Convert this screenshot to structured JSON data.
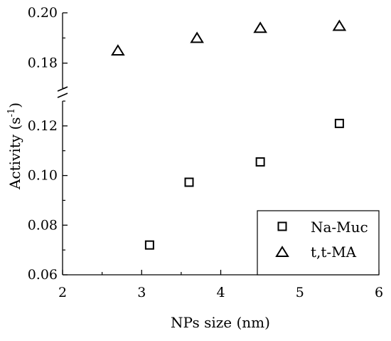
{
  "chart_data": {
    "type": "scatter",
    "title": "",
    "xlabel": "NPs size (nm)",
    "ylabel": "Activity (s",
    "ylabel_sup": "-1",
    "ylabel_suffix": ")",
    "xlim": [
      2,
      6
    ],
    "x_ticks": [
      "2",
      "3",
      "4",
      "5",
      "6"
    ],
    "y_axis_break": true,
    "ylim_lower": [
      0.06,
      0.13
    ],
    "ylim_upper": [
      0.17,
      0.2
    ],
    "y_ticks_lower": [
      "0.06",
      "0.08",
      "0.10",
      "0.12"
    ],
    "y_ticks_upper": [
      "0.18",
      "0.20"
    ],
    "grid": false,
    "legend_position": "bottom-right",
    "series": [
      {
        "name": "Na-Muc",
        "marker": "square-open",
        "color": "#000000",
        "x": [
          3.1,
          3.6,
          4.5,
          5.5
        ],
        "y": [
          0.072,
          0.0973,
          0.1055,
          0.121
        ]
      },
      {
        "name": "t,t-MA",
        "marker": "triangle-open",
        "color": "#000000",
        "x": [
          2.7,
          3.7,
          4.5,
          5.5
        ],
        "y": [
          0.185,
          0.19,
          0.194,
          0.1948
        ]
      }
    ]
  }
}
